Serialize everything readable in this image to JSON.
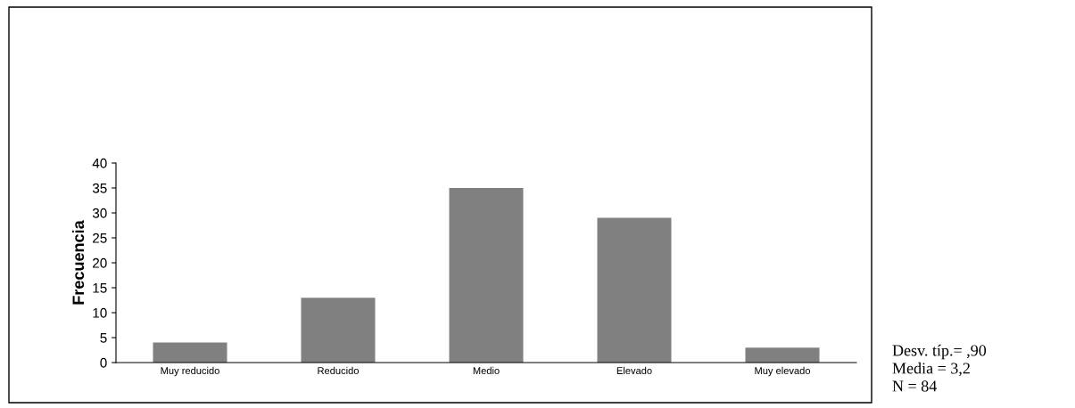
{
  "chart_data": {
    "type": "bar",
    "ylabel": "Frecuencia",
    "categories": [
      "Muy reducido",
      "Reducido",
      "Medio",
      "Elevado",
      "Muy elevado"
    ],
    "values": [
      4,
      13,
      35,
      29,
      3
    ],
    "color": "#808080",
    "ylim": [
      0,
      40
    ],
    "yticks": [
      0,
      5,
      10,
      15,
      20,
      25,
      30,
      35,
      40
    ],
    "grid": false,
    "legend": false,
    "annotations": [
      "Desv. típ.= ,90",
      "Media = 3,2",
      "N = 84"
    ]
  }
}
